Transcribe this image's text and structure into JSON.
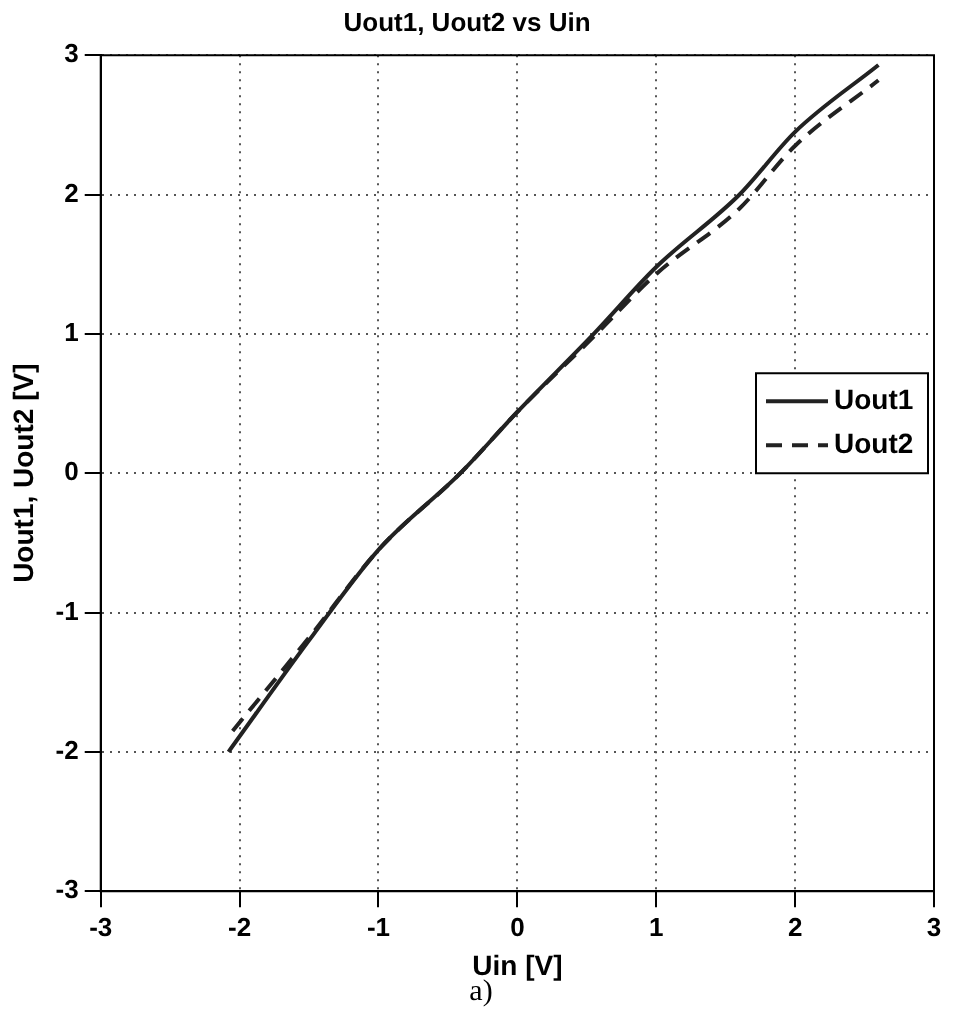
{
  "chart_data": {
    "type": "line",
    "title": "Uout1, Uout2 vs Uin",
    "xlabel": "Uin [V]",
    "ylabel": "Uout1, Uout2 [V]",
    "annotations": [
      "a)"
    ],
    "xlim": [
      -3,
      3
    ],
    "xticks": [
      -3,
      -2,
      -1,
      0,
      1,
      2,
      3
    ],
    "ylim": [
      -3,
      3
    ],
    "yticks": [
      -3,
      -2,
      -1,
      0,
      1,
      2,
      3
    ],
    "grid": true,
    "legend": "right",
    "marker": "none",
    "series": [
      {
        "name": "Uout1",
        "color": "#222222",
        "line_style": "solid",
        "x": [
          -2.08,
          -1.5,
          -1,
          -0.41,
          0,
          0.55,
          1,
          1.6,
          2,
          2.6
        ],
        "values": [
          -2,
          -1.2,
          -0.55,
          0,
          0.44,
          1,
          1.48,
          2,
          2.45,
          2.93
        ]
      },
      {
        "name": "Uout2",
        "color": "#222222",
        "line_style": "dashed",
        "x": [
          -2.05,
          -1.5,
          -1,
          -0.41,
          0,
          0.55,
          1,
          1.6,
          2,
          2.6
        ],
        "values": [
          -1.85,
          -1.18,
          -0.55,
          0,
          0.44,
          0.98,
          1.43,
          1.9,
          2.35,
          2.82
        ]
      }
    ]
  }
}
